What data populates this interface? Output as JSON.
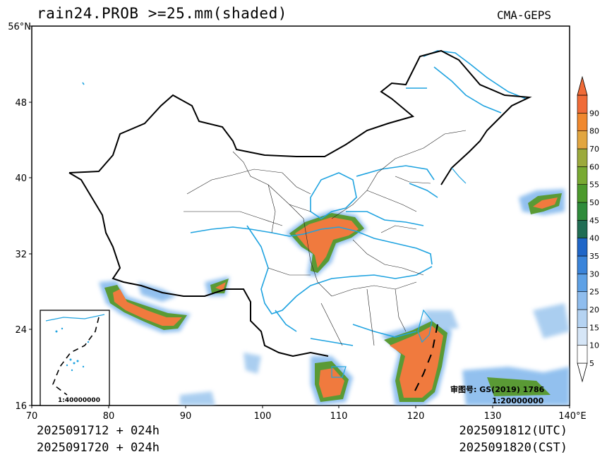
{
  "title": "rain24.PROB >=25.mm(shaded)",
  "source": "CMA-GEPS",
  "footer": {
    "init_line1": "2025091712 + 024h",
    "init_line2": "2025091720 + 024h",
    "valid_line1": "2025091812(UTC)",
    "valid_line2": "2025091820(CST)"
  },
  "axes": {
    "lat_ticks": [
      "16",
      "24",
      "32",
      "40",
      "48",
      "56°N"
    ],
    "lon_ticks": [
      "70",
      "80",
      "90",
      "100",
      "110",
      "120",
      "130",
      "140°E"
    ]
  },
  "colorbar": {
    "labels": [
      "5",
      "10",
      "15",
      "20",
      "25",
      "30",
      "35",
      "40",
      "45",
      "50",
      "55",
      "60",
      "70",
      "80",
      "90"
    ],
    "colors": [
      "#ffffff",
      "#d6e6f7",
      "#b5d3f2",
      "#8fbdee",
      "#5ea1e6",
      "#3a84da",
      "#1f66c8",
      "#206d54",
      "#2e8b3a",
      "#4c9a2c",
      "#79aa32",
      "#9caa3c",
      "#e2a640",
      "#f0882e",
      "#f06b38"
    ]
  },
  "map": {
    "approval_label": "审图号: GS(2019) 1786",
    "scale_label": "1:20000000",
    "inset_scale_label": "1:40000000",
    "land_color": "#ffffff",
    "river_color": "#1fa3e0",
    "border_color": "#000000"
  }
}
